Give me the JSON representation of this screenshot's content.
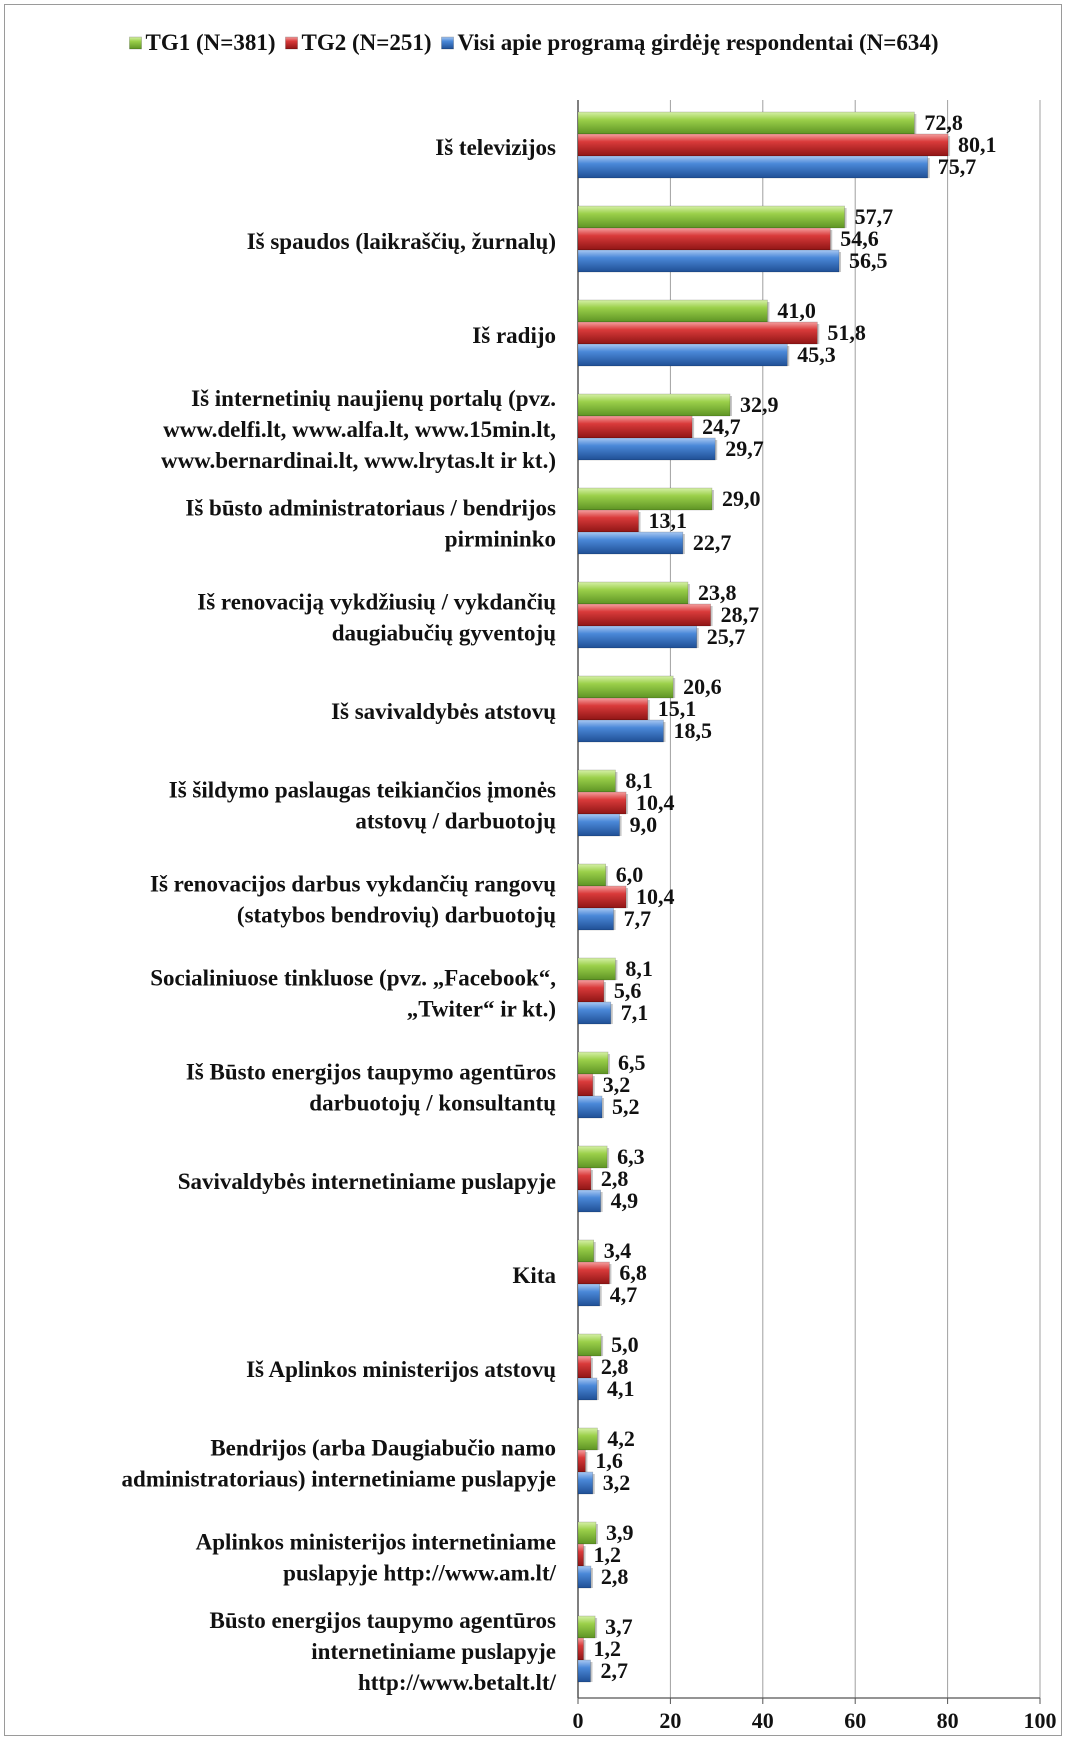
{
  "chart_data": {
    "type": "bar",
    "orientation": "horizontal",
    "legend_position": "top",
    "grid": true,
    "xlim": [
      0,
      100
    ],
    "x_ticks": [
      0,
      20,
      40,
      60,
      80,
      100
    ],
    "categories": [
      [
        "Iš televizijos"
      ],
      [
        "Iš spaudos (laikraščių, žurnalų)"
      ],
      [
        "Iš radijo"
      ],
      [
        "Iš internetinių naujienų portalų (pvz.",
        "www.delfi.lt, www.alfa.lt, www.15min.lt,",
        "www.bernardinai.lt, www.lrytas.lt ir kt.)"
      ],
      [
        "Iš būsto administratoriaus / bendrijos",
        "pirmininko"
      ],
      [
        "Iš renovaciją vykdžiusių / vykdančių",
        "daugiabučių gyventojų"
      ],
      [
        "Iš savivaldybės atstovų"
      ],
      [
        "Iš šildymo paslaugas teikiančios įmonės",
        "atstovų / darbuotojų"
      ],
      [
        "Iš renovacijos darbus vykdančių rangovų",
        "(statybos bendrovių) darbuotojų"
      ],
      [
        "Socialiniuose tinkluose (pvz. „Facebook“,",
        "„Twiter“ ir kt.)"
      ],
      [
        "Iš Būsto energijos taupymo agentūros",
        "darbuotojų / konsultantų"
      ],
      [
        "Savivaldybės internetiniame puslapyje"
      ],
      [
        "Kita"
      ],
      [
        "Iš Aplinkos ministerijos atstovų"
      ],
      [
        "Bendrijos (arba Daugiabučio namo",
        "administratoriaus) internetiniame puslapyje"
      ],
      [
        "Aplinkos ministerijos internetiniame",
        "puslapyje  http://www.am.lt/"
      ],
      [
        "Būsto energijos taupymo agentūros",
        "internetiniame puslapyje",
        "http://www.betalt.lt/"
      ]
    ],
    "series": [
      {
        "name": "TG1 (N=381)",
        "color": "#8cc63f",
        "values": [
          72.8,
          57.7,
          41.0,
          32.9,
          29.0,
          23.8,
          20.6,
          8.1,
          6.0,
          8.1,
          6.5,
          6.3,
          3.4,
          5.0,
          4.2,
          3.9,
          3.7
        ],
        "labels": [
          "72,8",
          "57,7",
          "41,0",
          "32,9",
          "29,0",
          "23,8",
          "20,6",
          "8,1",
          "6,0",
          "8,1",
          "6,5",
          "6,3",
          "3,4",
          "5,0",
          "4,2",
          "3,9",
          "3,7"
        ]
      },
      {
        "name": "TG2 (N=251)",
        "color": "#d32f2f",
        "values": [
          80.1,
          54.6,
          51.8,
          24.7,
          13.1,
          28.7,
          15.1,
          10.4,
          10.4,
          5.6,
          3.2,
          2.8,
          6.8,
          2.8,
          1.6,
          1.2,
          1.2
        ],
        "labels": [
          "80,1",
          "54,6",
          "51,8",
          "24,7",
          "13,1",
          "28,7",
          "15,1",
          "10,4",
          "10,4",
          "5,6",
          "3,2",
          "2,8",
          "6,8",
          "2,8",
          "1,6",
          "1,2",
          "1,2"
        ]
      },
      {
        "name": "Visi apie programą girdėję respondentai (N=634)",
        "color": "#3f7fd1",
        "values": [
          75.7,
          56.5,
          45.3,
          29.7,
          22.7,
          25.7,
          18.5,
          9.0,
          7.7,
          7.1,
          5.2,
          4.9,
          4.7,
          4.1,
          3.2,
          2.8,
          2.7
        ],
        "labels": [
          "75,7",
          "56,5",
          "45,3",
          "29,7",
          "22,7",
          "25,7",
          "18,5",
          "9,0",
          "7,7",
          "7,1",
          "5,2",
          "4,9",
          "4,7",
          "4,1",
          "3,2",
          "2,8",
          "2,7"
        ]
      }
    ]
  }
}
